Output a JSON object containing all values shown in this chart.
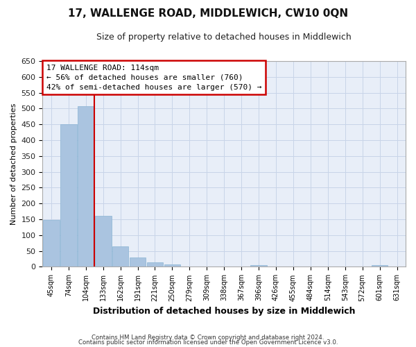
{
  "title": "17, WALLENGE ROAD, MIDDLEWICH, CW10 0QN",
  "subtitle": "Size of property relative to detached houses in Middlewich",
  "xlabel": "Distribution of detached houses by size in Middlewich",
  "ylabel": "Number of detached properties",
  "footer_line1": "Contains HM Land Registry data © Crown copyright and database right 2024.",
  "footer_line2": "Contains public sector information licensed under the Open Government Licence v3.0.",
  "categories": [
    "45sqm",
    "74sqm",
    "104sqm",
    "133sqm",
    "162sqm",
    "191sqm",
    "221sqm",
    "250sqm",
    "279sqm",
    "309sqm",
    "338sqm",
    "367sqm",
    "396sqm",
    "426sqm",
    "455sqm",
    "484sqm",
    "514sqm",
    "543sqm",
    "572sqm",
    "601sqm",
    "631sqm"
  ],
  "values": [
    148,
    450,
    508,
    160,
    65,
    30,
    14,
    8,
    0,
    0,
    0,
    0,
    5,
    0,
    0,
    0,
    0,
    0,
    0,
    5,
    0
  ],
  "bar_color": "#aac4e0",
  "bar_edge_color": "#8ab4d4",
  "grid_color": "#c8d4e8",
  "background_color": "#e8eef8",
  "property_line_bin": 2,
  "annotation_line1": "17 WALLENGE ROAD: 114sqm",
  "annotation_line2": "← 56% of detached houses are smaller (760)",
  "annotation_line3": "42% of semi-detached houses are larger (570) →",
  "annotation_box_color": "#cc0000",
  "ylim": [
    0,
    650
  ],
  "yticks": [
    0,
    50,
    100,
    150,
    200,
    250,
    300,
    350,
    400,
    450,
    500,
    550,
    600,
    650
  ],
  "figsize": [
    6.0,
    5.0
  ],
  "dpi": 100
}
